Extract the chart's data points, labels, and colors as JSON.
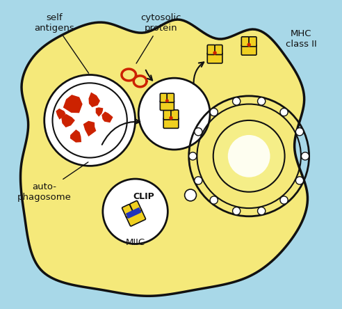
{
  "bg_color": "#a8d8e8",
  "cell_fill": "#f5e97a",
  "cell_edge": "#111111",
  "white": "#ffffff",
  "red": "#cc2200",
  "yellow": "#f0d020",
  "blue": "#2233bb",
  "dark": "#111111",
  "label_self_antigens": "self\nantigens",
  "label_cytosolic": "cytosolic\nprotein",
  "label_mhc": "MHC\nclass II",
  "label_auto": "auto-\nphagosome",
  "label_clip": "CLIP",
  "label_miic": "MIIC"
}
